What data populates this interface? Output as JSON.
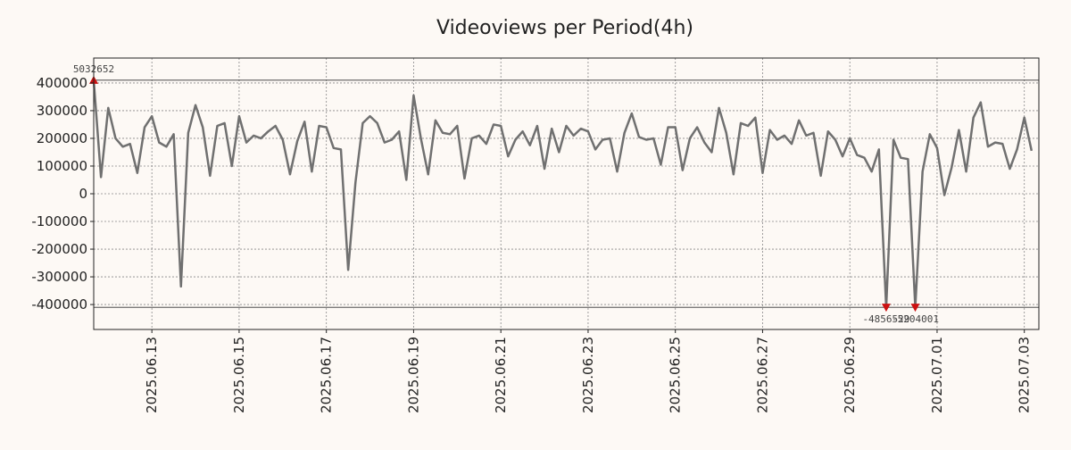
{
  "chart_data": {
    "type": "line",
    "title": "Videoviews per Period(4h)",
    "xlabel": "",
    "ylabel": "",
    "grid": true,
    "colors": {
      "background": "#fdf9f5",
      "line": "#707070",
      "marker": "#cc1111",
      "grid": "#888888",
      "axis": "#222222",
      "annotation": "#444444"
    },
    "x_range": [
      "2025-06-11T16:00",
      "2025-07-03T08:00"
    ],
    "ylim": [
      -490000,
      490000
    ],
    "yticks": [
      400000,
      300000,
      200000,
      100000,
      0,
      -100000,
      -200000,
      -300000,
      -400000
    ],
    "ytick_labels": [
      "400000",
      "300000",
      "200000",
      "100000",
      "0",
      "-100000",
      "-200000",
      "-300000",
      "-400000"
    ],
    "xticks": [
      "2025-06-13",
      "2025-06-15",
      "2025-06-17",
      "2025-06-19",
      "2025-06-21",
      "2025-06-23",
      "2025-06-25",
      "2025-06-27",
      "2025-06-29",
      "2025-07-01",
      "2025-07-03"
    ],
    "xtick_labels": [
      "2025.06.13",
      "2025.06.15",
      "2025.06.17",
      "2025.06.19",
      "2025.06.21",
      "2025.06.23",
      "2025.06.25",
      "2025.06.27",
      "2025.06.29",
      "2025.07.01",
      "2025.07.03"
    ],
    "reference_lines": [
      410000,
      -410000
    ],
    "series": [
      {
        "name": "Videoviews",
        "points": [
          [
            "2025-06-11T16:00",
            410000
          ],
          [
            "2025-06-11T20:00",
            60000
          ],
          [
            "2025-06-12T00:00",
            310000
          ],
          [
            "2025-06-12T04:00",
            200000
          ],
          [
            "2025-06-12T08:00",
            170000
          ],
          [
            "2025-06-12T12:00",
            180000
          ],
          [
            "2025-06-12T16:00",
            75000
          ],
          [
            "2025-06-12T20:00",
            240000
          ],
          [
            "2025-06-13T00:00",
            280000
          ],
          [
            "2025-06-13T04:00",
            185000
          ],
          [
            "2025-06-13T08:00",
            170000
          ],
          [
            "2025-06-13T12:00",
            215000
          ],
          [
            "2025-06-13T16:00",
            -335000
          ],
          [
            "2025-06-13T20:00",
            220000
          ],
          [
            "2025-06-14T00:00",
            320000
          ],
          [
            "2025-06-14T04:00",
            240000
          ],
          [
            "2025-06-14T08:00",
            65000
          ],
          [
            "2025-06-14T12:00",
            245000
          ],
          [
            "2025-06-14T16:00",
            255000
          ],
          [
            "2025-06-14T20:00",
            100000
          ],
          [
            "2025-06-15T00:00",
            280000
          ],
          [
            "2025-06-15T04:00",
            185000
          ],
          [
            "2025-06-15T08:00",
            210000
          ],
          [
            "2025-06-15T12:00",
            200000
          ],
          [
            "2025-06-15T16:00",
            225000
          ],
          [
            "2025-06-15T20:00",
            245000
          ],
          [
            "2025-06-16T00:00",
            195000
          ],
          [
            "2025-06-16T04:00",
            70000
          ],
          [
            "2025-06-16T08:00",
            190000
          ],
          [
            "2025-06-16T12:00",
            260000
          ],
          [
            "2025-06-16T16:00",
            80000
          ],
          [
            "2025-06-16T20:00",
            245000
          ],
          [
            "2025-06-17T00:00",
            240000
          ],
          [
            "2025-06-17T04:00",
            165000
          ],
          [
            "2025-06-17T08:00",
            160000
          ],
          [
            "2025-06-17T12:00",
            -275000
          ],
          [
            "2025-06-17T16:00",
            40000
          ],
          [
            "2025-06-17T20:00",
            255000
          ],
          [
            "2025-06-18T00:00",
            280000
          ],
          [
            "2025-06-18T04:00",
            255000
          ],
          [
            "2025-06-18T08:00",
            185000
          ],
          [
            "2025-06-18T12:00",
            195000
          ],
          [
            "2025-06-18T16:00",
            225000
          ],
          [
            "2025-06-18T20:00",
            50000
          ],
          [
            "2025-06-19T00:00",
            355000
          ],
          [
            "2025-06-19T04:00",
            200000
          ],
          [
            "2025-06-19T08:00",
            70000
          ],
          [
            "2025-06-19T12:00",
            265000
          ],
          [
            "2025-06-19T16:00",
            220000
          ],
          [
            "2025-06-19T20:00",
            215000
          ],
          [
            "2025-06-20T00:00",
            245000
          ],
          [
            "2025-06-20T04:00",
            55000
          ],
          [
            "2025-06-20T08:00",
            200000
          ],
          [
            "2025-06-20T12:00",
            210000
          ],
          [
            "2025-06-20T16:00",
            180000
          ],
          [
            "2025-06-20T20:00",
            250000
          ],
          [
            "2025-06-21T00:00",
            245000
          ],
          [
            "2025-06-21T04:00",
            135000
          ],
          [
            "2025-06-21T08:00",
            195000
          ],
          [
            "2025-06-21T12:00",
            225000
          ],
          [
            "2025-06-21T16:00",
            175000
          ],
          [
            "2025-06-21T20:00",
            245000
          ],
          [
            "2025-06-22T00:00",
            90000
          ],
          [
            "2025-06-22T04:00",
            235000
          ],
          [
            "2025-06-22T08:00",
            150000
          ],
          [
            "2025-06-22T12:00",
            245000
          ],
          [
            "2025-06-22T16:00",
            210000
          ],
          [
            "2025-06-22T20:00",
            235000
          ],
          [
            "2025-06-23T00:00",
            225000
          ],
          [
            "2025-06-23T04:00",
            160000
          ],
          [
            "2025-06-23T08:00",
            195000
          ],
          [
            "2025-06-23T12:00",
            200000
          ],
          [
            "2025-06-23T16:00",
            80000
          ],
          [
            "2025-06-23T20:00",
            220000
          ],
          [
            "2025-06-24T00:00",
            290000
          ],
          [
            "2025-06-24T04:00",
            205000
          ],
          [
            "2025-06-24T08:00",
            195000
          ],
          [
            "2025-06-24T12:00",
            200000
          ],
          [
            "2025-06-24T16:00",
            105000
          ],
          [
            "2025-06-24T20:00",
            240000
          ],
          [
            "2025-06-25T00:00",
            240000
          ],
          [
            "2025-06-25T04:00",
            85000
          ],
          [
            "2025-06-25T08:00",
            200000
          ],
          [
            "2025-06-25T12:00",
            240000
          ],
          [
            "2025-06-25T16:00",
            185000
          ],
          [
            "2025-06-25T20:00",
            150000
          ],
          [
            "2025-06-26T00:00",
            310000
          ],
          [
            "2025-06-26T04:00",
            220000
          ],
          [
            "2025-06-26T08:00",
            70000
          ],
          [
            "2025-06-26T12:00",
            255000
          ],
          [
            "2025-06-26T16:00",
            245000
          ],
          [
            "2025-06-26T20:00",
            275000
          ],
          [
            "2025-06-27T00:00",
            75000
          ],
          [
            "2025-06-27T04:00",
            230000
          ],
          [
            "2025-06-27T08:00",
            195000
          ],
          [
            "2025-06-27T12:00",
            210000
          ],
          [
            "2025-06-27T16:00",
            180000
          ],
          [
            "2025-06-27T20:00",
            265000
          ],
          [
            "2025-06-28T00:00",
            210000
          ],
          [
            "2025-06-28T04:00",
            220000
          ],
          [
            "2025-06-28T08:00",
            65000
          ],
          [
            "2025-06-28T12:00",
            225000
          ],
          [
            "2025-06-28T16:00",
            195000
          ],
          [
            "2025-06-28T20:00",
            135000
          ],
          [
            "2025-06-29T00:00",
            200000
          ],
          [
            "2025-06-29T04:00",
            140000
          ],
          [
            "2025-06-29T08:00",
            130000
          ],
          [
            "2025-06-29T12:00",
            80000
          ],
          [
            "2025-06-29T16:00",
            160000
          ],
          [
            "2025-06-29T20:00",
            -410000
          ],
          [
            "2025-06-30T00:00",
            195000
          ],
          [
            "2025-06-30T04:00",
            130000
          ],
          [
            "2025-06-30T08:00",
            125000
          ],
          [
            "2025-06-30T12:00",
            -410000
          ],
          [
            "2025-06-30T16:00",
            80000
          ],
          [
            "2025-06-30T20:00",
            215000
          ],
          [
            "2025-07-01T00:00",
            165000
          ],
          [
            "2025-07-01T04:00",
            -5000
          ],
          [
            "2025-07-01T08:00",
            95000
          ],
          [
            "2025-07-01T12:00",
            230000
          ],
          [
            "2025-07-01T16:00",
            80000
          ],
          [
            "2025-07-01T20:00",
            275000
          ],
          [
            "2025-07-02T00:00",
            330000
          ],
          [
            "2025-07-02T04:00",
            170000
          ],
          [
            "2025-07-02T08:00",
            185000
          ],
          [
            "2025-07-02T12:00",
            180000
          ],
          [
            "2025-07-02T16:00",
            90000
          ],
          [
            "2025-07-02T20:00",
            160000
          ],
          [
            "2025-07-03T00:00",
            275000
          ],
          [
            "2025-07-03T04:00",
            155000
          ]
        ]
      }
    ],
    "annotations": [
      {
        "x": "2025-06-11T16:00",
        "y": 410000,
        "label": "5032652",
        "marker": "up",
        "label_side": "above"
      },
      {
        "x": "2025-06-29T20:00",
        "y": -410000,
        "label": "-4856529",
        "marker": "down",
        "label_side": "below"
      },
      {
        "x": "2025-06-30T12:00",
        "y": -410000,
        "label": "-5204001",
        "marker": "down",
        "label_side": "below"
      }
    ]
  }
}
